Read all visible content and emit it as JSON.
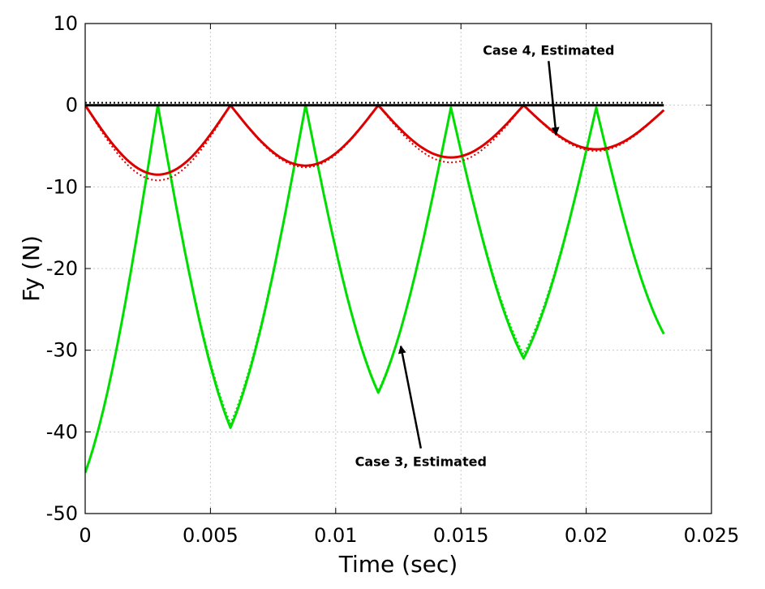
{
  "chart_data": {
    "type": "line",
    "xlabel": "Time (sec)",
    "ylabel": "Fy (N)",
    "xlim": [
      0,
      0.025
    ],
    "ylim": [
      -50,
      10
    ],
    "x_ticks": [
      0,
      0.005,
      0.01,
      0.015,
      0.02,
      0.025
    ],
    "x_tick_labels": [
      "0",
      "0.005",
      "0.01",
      "0.015",
      "0.02",
      "0.025"
    ],
    "y_ticks": [
      10,
      0,
      -10,
      -20,
      -30,
      -40,
      -50
    ],
    "y_tick_labels": [
      "10",
      "0",
      "-10",
      "-20",
      "-30",
      "-40",
      "-50"
    ],
    "grid": true,
    "series": [
      {
        "color": "#00dd00",
        "style": "solid",
        "x": [
          0,
          0.0029,
          0.0058,
          0.0088,
          0.0117,
          0.0146,
          0.0175,
          0.0204,
          0.0231
        ],
        "y": [
          -45,
          0,
          -39.5,
          0,
          -35.2,
          -0.3,
          -31,
          -0.3,
          -28
        ]
      },
      {
        "color": "#00dd00",
        "style": "dotted",
        "x": [
          0,
          0.0029,
          0.0058,
          0.0088,
          0.0117,
          0.0146,
          0.0175,
          0.0204,
          0.0231
        ],
        "y": [
          -45,
          0,
          -39,
          0,
          -35,
          -0.3,
          -30.5,
          -0.3,
          -28
        ]
      },
      {
        "color": "#dd0000",
        "style": "solid",
        "x": [
          0,
          0.0029,
          0.0058,
          0.0088,
          0.0117,
          0.0146,
          0.0175,
          0.0204,
          0.0231
        ],
        "y": [
          0,
          -8.5,
          0,
          -7.4,
          0,
          -6.4,
          0,
          -5.4,
          -0.6
        ]
      },
      {
        "color": "#dd0000",
        "style": "dotted",
        "x": [
          0,
          0.0029,
          0.0058,
          0.0088,
          0.0117,
          0.0146,
          0.0175,
          0.0204,
          0.0231
        ],
        "y": [
          0,
          -9.2,
          0,
          -7.6,
          0,
          -7,
          0,
          -5.6,
          -0.6
        ]
      },
      {
        "color": "#000000",
        "style": "solid",
        "x": [
          0,
          0.0231
        ],
        "y": [
          0,
          0
        ]
      },
      {
        "color": "#000000",
        "style": "dotted",
        "x": [
          0,
          0.0231
        ],
        "y": [
          0.3,
          0.3
        ]
      }
    ],
    "annotations": [
      {
        "text": "Case 4, Estimated",
        "target": [
          0.0188,
          -3.6
        ],
        "text_at": [
          0.0185,
          6.2
        ]
      },
      {
        "text": "Case 3, Estimated",
        "target": [
          0.0126,
          -29.5
        ],
        "text_at": [
          0.0134,
          -44.2
        ]
      }
    ]
  }
}
